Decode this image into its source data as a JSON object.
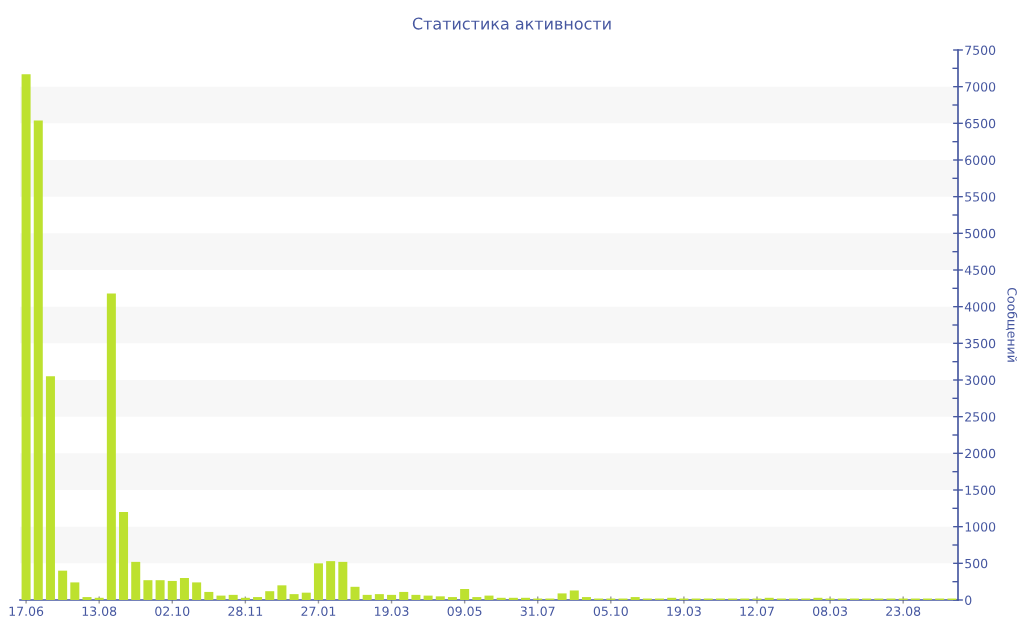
{
  "chart_data": {
    "type": "bar",
    "title": "Статистика активности",
    "ylabel": "Сообщений",
    "categories": [
      "17.06",
      null,
      null,
      null,
      null,
      null,
      "13.08",
      null,
      null,
      null,
      null,
      null,
      "02.10",
      null,
      null,
      null,
      null,
      null,
      "28.11",
      null,
      null,
      null,
      null,
      null,
      "27.01",
      null,
      null,
      null,
      null,
      null,
      "19.03",
      null,
      null,
      null,
      null,
      null,
      "09.05",
      null,
      null,
      null,
      null,
      null,
      "31.07",
      null,
      null,
      null,
      null,
      null,
      "05.10",
      null,
      null,
      null,
      null,
      null,
      "19.03",
      null,
      null,
      null,
      null,
      null,
      "12.07",
      null,
      null,
      null,
      null,
      null,
      "08.03",
      null,
      null,
      null,
      null,
      null,
      "23.08",
      null,
      null,
      null,
      null
    ],
    "values": [
      7170,
      6540,
      3050,
      400,
      240,
      40,
      30,
      4180,
      1200,
      520,
      270,
      270,
      260,
      300,
      240,
      110,
      60,
      70,
      30,
      40,
      120,
      200,
      80,
      100,
      500,
      530,
      520,
      180,
      70,
      80,
      70,
      110,
      70,
      60,
      50,
      40,
      150,
      40,
      60,
      30,
      30,
      30,
      20,
      20,
      90,
      130,
      40,
      20,
      20,
      20,
      40,
      20,
      20,
      30,
      20,
      20,
      20,
      20,
      20,
      20,
      20,
      30,
      20,
      20,
      20,
      30,
      20,
      20,
      20,
      20,
      20,
      20,
      20,
      20,
      20,
      20,
      20
    ],
    "color": "#bde12f",
    "ylim": [
      0,
      7500
    ],
    "yticks": [
      0,
      500,
      1000,
      1500,
      2000,
      2500,
      3000,
      3500,
      4000,
      4500,
      5000,
      5500,
      6000,
      6500,
      7000,
      7500
    ],
    "bands": [
      {
        "axis": "y",
        "from": 500,
        "to": 1000,
        "color": "#f7f7f7"
      },
      {
        "axis": "y",
        "from": 1500,
        "to": 2000,
        "color": "#f7f7f7"
      },
      {
        "axis": "y",
        "from": 2500,
        "to": 3000,
        "color": "#f7f7f7"
      },
      {
        "axis": "y",
        "from": 3500,
        "to": 4000,
        "color": "#f7f7f7"
      },
      {
        "axis": "y",
        "from": 4500,
        "to": 5000,
        "color": "#f7f7f7"
      },
      {
        "axis": "y",
        "from": 5500,
        "to": 6000,
        "color": "#f7f7f7"
      },
      {
        "axis": "y",
        "from": 6500,
        "to": 7000,
        "color": "#f7f7f7"
      }
    ]
  }
}
